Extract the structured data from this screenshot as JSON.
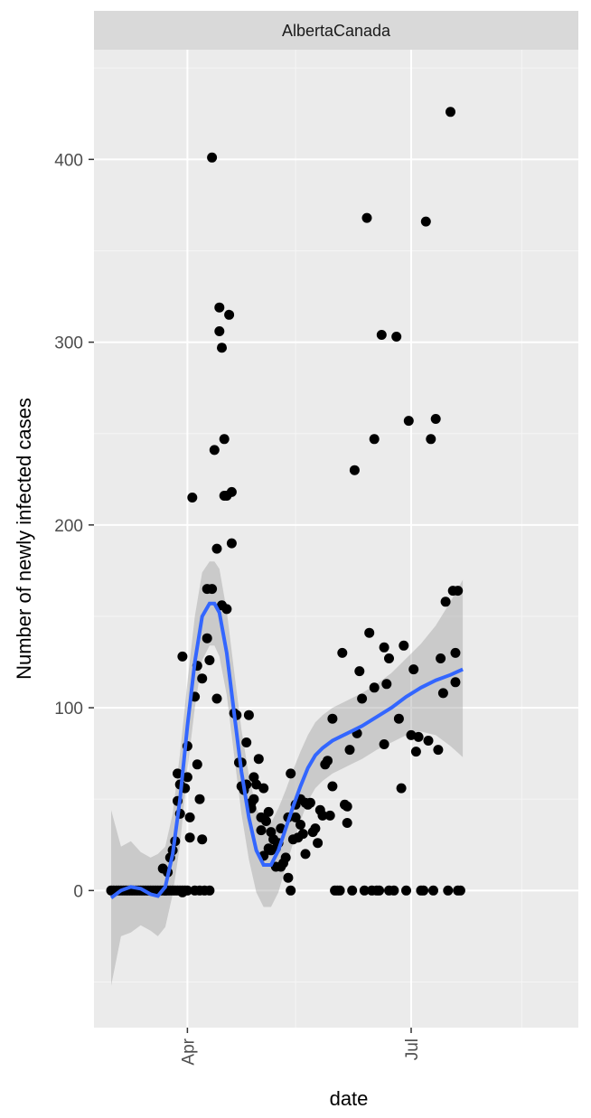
{
  "chart_data": {
    "type": "scatter",
    "facet_label": "AlbertaCanada",
    "xlabel": "date",
    "ylabel": "Number of newly infected cases",
    "x_ticks": [
      "Apr",
      "Jul"
    ],
    "y_ticks": [
      0,
      100,
      200,
      300,
      400
    ],
    "xlim": [
      "2020-02-23",
      "2020-09-07"
    ],
    "ylim": [
      -75,
      460
    ],
    "grid": true,
    "background": "#EBEBEB",
    "point_color": "#000000",
    "smooth_color": "#3366FF",
    "ribbon_color": "#BEBEBE",
    "points": [
      [
        "2020-03-01",
        0
      ],
      [
        "2020-03-02",
        0
      ],
      [
        "2020-03-03",
        0
      ],
      [
        "2020-03-04",
        0
      ],
      [
        "2020-03-05",
        0
      ],
      [
        "2020-03-06",
        0
      ],
      [
        "2020-03-07",
        0
      ],
      [
        "2020-03-08",
        0
      ],
      [
        "2020-03-09",
        0
      ],
      [
        "2020-03-10",
        0
      ],
      [
        "2020-03-11",
        0
      ],
      [
        "2020-03-12",
        0
      ],
      [
        "2020-03-13",
        0
      ],
      [
        "2020-03-14",
        0
      ],
      [
        "2020-03-15",
        0
      ],
      [
        "2020-03-16",
        0
      ],
      [
        "2020-03-17",
        0
      ],
      [
        "2020-03-18",
        0
      ],
      [
        "2020-03-19",
        0
      ],
      [
        "2020-03-20",
        0
      ],
      [
        "2020-03-21",
        0
      ],
      [
        "2020-03-22",
        0
      ],
      [
        "2020-03-23",
        0
      ],
      [
        "2020-03-24",
        0
      ],
      [
        "2020-03-25",
        0
      ],
      [
        "2020-03-26",
        0
      ],
      [
        "2020-03-27",
        0
      ],
      [
        "2020-03-28",
        0
      ],
      [
        "2020-03-29",
        0
      ],
      [
        "2020-03-30",
        0
      ],
      [
        "2020-03-31",
        0
      ],
      [
        "2020-03-22",
        12
      ],
      [
        "2020-03-23",
        0
      ],
      [
        "2020-03-24",
        10
      ],
      [
        "2020-03-25",
        18
      ],
      [
        "2020-03-26",
        22
      ],
      [
        "2020-03-27",
        27
      ],
      [
        "2020-03-28",
        49
      ],
      [
        "2020-03-28",
        64
      ],
      [
        "2020-03-29",
        42
      ],
      [
        "2020-03-29",
        58
      ],
      [
        "2020-03-30",
        -1
      ],
      [
        "2020-03-30",
        128
      ],
      [
        "2020-03-31",
        56
      ],
      [
        "2020-04-01",
        0
      ],
      [
        "2020-04-01",
        79
      ],
      [
        "2020-04-01",
        62
      ],
      [
        "2020-04-02",
        40
      ],
      [
        "2020-04-02",
        29
      ],
      [
        "2020-04-03",
        215
      ],
      [
        "2020-04-04",
        0
      ],
      [
        "2020-04-04",
        106
      ],
      [
        "2020-04-05",
        69
      ],
      [
        "2020-04-05",
        123
      ],
      [
        "2020-04-06",
        0
      ],
      [
        "2020-04-06",
        50
      ],
      [
        "2020-04-07",
        28
      ],
      [
        "2020-04-07",
        116
      ],
      [
        "2020-04-08",
        0
      ],
      [
        "2020-04-09",
        165
      ],
      [
        "2020-04-09",
        138
      ],
      [
        "2020-04-10",
        0
      ],
      [
        "2020-04-10",
        126
      ],
      [
        "2020-04-11",
        401
      ],
      [
        "2020-04-11",
        165
      ],
      [
        "2020-04-12",
        241
      ],
      [
        "2020-04-13",
        105
      ],
      [
        "2020-04-13",
        187
      ],
      [
        "2020-04-14",
        306
      ],
      [
        "2020-04-14",
        319
      ],
      [
        "2020-04-15",
        297
      ],
      [
        "2020-04-15",
        156
      ],
      [
        "2020-04-16",
        216
      ],
      [
        "2020-04-16",
        247
      ],
      [
        "2020-04-17",
        216
      ],
      [
        "2020-04-17",
        154
      ],
      [
        "2020-04-18",
        315
      ],
      [
        "2020-04-19",
        190
      ],
      [
        "2020-04-19",
        218
      ],
      [
        "2020-04-20",
        97
      ],
      [
        "2020-04-21",
        96
      ],
      [
        "2020-04-22",
        70
      ],
      [
        "2020-04-23",
        57
      ],
      [
        "2020-04-23",
        70
      ],
      [
        "2020-04-24",
        55
      ],
      [
        "2020-04-25",
        81
      ],
      [
        "2020-04-25",
        58
      ],
      [
        "2020-04-26",
        96
      ],
      [
        "2020-04-27",
        45
      ],
      [
        "2020-04-27",
        48
      ],
      [
        "2020-04-28",
        62
      ],
      [
        "2020-04-28",
        50
      ],
      [
        "2020-04-29",
        58
      ],
      [
        "2020-04-30",
        72
      ],
      [
        "2020-05-01",
        40
      ],
      [
        "2020-05-01",
        33
      ],
      [
        "2020-05-02",
        56
      ],
      [
        "2020-05-02",
        19
      ],
      [
        "2020-05-03",
        38
      ],
      [
        "2020-05-04",
        23
      ],
      [
        "2020-05-04",
        43
      ],
      [
        "2020-05-05",
        32
      ],
      [
        "2020-05-05",
        22
      ],
      [
        "2020-05-06",
        28
      ],
      [
        "2020-05-07",
        13
      ],
      [
        "2020-05-07",
        23
      ],
      [
        "2020-05-08",
        26
      ],
      [
        "2020-05-09",
        34
      ],
      [
        "2020-05-09",
        13
      ],
      [
        "2020-05-10",
        15
      ],
      [
        "2020-05-11",
        18
      ],
      [
        "2020-05-12",
        7
      ],
      [
        "2020-05-12",
        40
      ],
      [
        "2020-05-13",
        0
      ],
      [
        "2020-05-13",
        64
      ],
      [
        "2020-05-14",
        28
      ],
      [
        "2020-05-15",
        47
      ],
      [
        "2020-05-15",
        40
      ],
      [
        "2020-05-16",
        29
      ],
      [
        "2020-05-17",
        36
      ],
      [
        "2020-05-17",
        50
      ],
      [
        "2020-05-18",
        31
      ],
      [
        "2020-05-19",
        20
      ],
      [
        "2020-05-19",
        48
      ],
      [
        "2020-05-20",
        47
      ],
      [
        "2020-05-21",
        48
      ],
      [
        "2020-05-22",
        32
      ],
      [
        "2020-05-23",
        34
      ],
      [
        "2020-05-24",
        26
      ],
      [
        "2020-05-25",
        44
      ],
      [
        "2020-05-26",
        41
      ],
      [
        "2020-05-27",
        69
      ],
      [
        "2020-05-28",
        71
      ],
      [
        "2020-05-29",
        41
      ],
      [
        "2020-05-30",
        94
      ],
      [
        "2020-05-30",
        57
      ],
      [
        "2020-05-31",
        0
      ],
      [
        "2020-06-01",
        0
      ],
      [
        "2020-06-02",
        0
      ],
      [
        "2020-06-03",
        130
      ],
      [
        "2020-06-04",
        47
      ],
      [
        "2020-06-05",
        46
      ],
      [
        "2020-06-05",
        37
      ],
      [
        "2020-06-06",
        77
      ],
      [
        "2020-06-07",
        0
      ],
      [
        "2020-06-08",
        230
      ],
      [
        "2020-06-09",
        86
      ],
      [
        "2020-06-10",
        120
      ],
      [
        "2020-06-11",
        105
      ],
      [
        "2020-06-12",
        0
      ],
      [
        "2020-06-13",
        368
      ],
      [
        "2020-06-14",
        141
      ],
      [
        "2020-06-15",
        0
      ],
      [
        "2020-06-16",
        247
      ],
      [
        "2020-06-16",
        111
      ],
      [
        "2020-06-17",
        0
      ],
      [
        "2020-06-18",
        0
      ],
      [
        "2020-06-19",
        304
      ],
      [
        "2020-06-20",
        80
      ],
      [
        "2020-06-20",
        133
      ],
      [
        "2020-06-21",
        113
      ],
      [
        "2020-06-22",
        127
      ],
      [
        "2020-06-22",
        0
      ],
      [
        "2020-06-24",
        0
      ],
      [
        "2020-06-25",
        303
      ],
      [
        "2020-06-26",
        94
      ],
      [
        "2020-06-27",
        56
      ],
      [
        "2020-06-28",
        134
      ],
      [
        "2020-06-29",
        0
      ],
      [
        "2020-06-30",
        257
      ],
      [
        "2020-07-01",
        85
      ],
      [
        "2020-07-02",
        121
      ],
      [
        "2020-07-03",
        76
      ],
      [
        "2020-07-04",
        84
      ],
      [
        "2020-07-05",
        0
      ],
      [
        "2020-07-06",
        0
      ],
      [
        "2020-07-07",
        366
      ],
      [
        "2020-07-08",
        82
      ],
      [
        "2020-07-09",
        247
      ],
      [
        "2020-07-10",
        0
      ],
      [
        "2020-07-11",
        258
      ],
      [
        "2020-07-12",
        77
      ],
      [
        "2020-07-13",
        127
      ],
      [
        "2020-07-14",
        108
      ],
      [
        "2020-07-15",
        158
      ],
      [
        "2020-07-16",
        0
      ],
      [
        "2020-07-17",
        426
      ],
      [
        "2020-07-18",
        164
      ],
      [
        "2020-07-19",
        114
      ],
      [
        "2020-07-19",
        130
      ],
      [
        "2020-07-20",
        164
      ],
      [
        "2020-07-21",
        0
      ],
      [
        "2020-07-20",
        0
      ]
    ],
    "smooth": [
      [
        "2020-03-01",
        -4
      ],
      [
        "2020-03-05",
        0
      ],
      [
        "2020-03-09",
        2
      ],
      [
        "2020-03-13",
        1
      ],
      [
        "2020-03-17",
        -2
      ],
      [
        "2020-03-20",
        -3
      ],
      [
        "2020-03-23",
        2
      ],
      [
        "2020-03-26",
        20
      ],
      [
        "2020-03-29",
        50
      ],
      [
        "2020-04-01",
        90
      ],
      [
        "2020-04-04",
        125
      ],
      [
        "2020-04-07",
        150
      ],
      [
        "2020-04-10",
        157
      ],
      [
        "2020-04-12",
        157
      ],
      [
        "2020-04-14",
        152
      ],
      [
        "2020-04-17",
        130
      ],
      [
        "2020-04-20",
        97
      ],
      [
        "2020-04-23",
        65
      ],
      [
        "2020-04-26",
        40
      ],
      [
        "2020-04-29",
        22
      ],
      [
        "2020-05-02",
        14
      ],
      [
        "2020-05-05",
        14
      ],
      [
        "2020-05-08",
        22
      ],
      [
        "2020-05-11",
        34
      ],
      [
        "2020-05-14",
        46
      ],
      [
        "2020-05-17",
        57
      ],
      [
        "2020-05-20",
        67
      ],
      [
        "2020-05-23",
        74
      ],
      [
        "2020-05-26",
        78
      ],
      [
        "2020-05-30",
        82
      ],
      [
        "2020-06-05",
        86
      ],
      [
        "2020-06-11",
        90
      ],
      [
        "2020-06-17",
        95
      ],
      [
        "2020-06-23",
        100
      ],
      [
        "2020-06-29",
        106
      ],
      [
        "2020-07-05",
        111
      ],
      [
        "2020-07-11",
        115
      ],
      [
        "2020-07-17",
        118
      ],
      [
        "2020-07-22",
        121
      ]
    ],
    "ribbon_upper": [
      [
        "2020-03-01",
        44
      ],
      [
        "2020-03-05",
        24
      ],
      [
        "2020-03-09",
        27
      ],
      [
        "2020-03-13",
        21
      ],
      [
        "2020-03-17",
        18
      ],
      [
        "2020-03-20",
        20
      ],
      [
        "2020-03-23",
        24
      ],
      [
        "2020-03-26",
        42
      ],
      [
        "2020-03-29",
        75
      ],
      [
        "2020-04-01",
        114
      ],
      [
        "2020-04-04",
        150
      ],
      [
        "2020-04-07",
        174
      ],
      [
        "2020-04-10",
        180
      ],
      [
        "2020-04-12",
        180
      ],
      [
        "2020-04-14",
        176
      ],
      [
        "2020-04-17",
        153
      ],
      [
        "2020-04-20",
        120
      ],
      [
        "2020-04-23",
        88
      ],
      [
        "2020-04-26",
        63
      ],
      [
        "2020-04-29",
        45
      ],
      [
        "2020-05-02",
        37
      ],
      [
        "2020-05-05",
        37
      ],
      [
        "2020-05-08",
        45
      ],
      [
        "2020-05-11",
        55
      ],
      [
        "2020-05-14",
        66
      ],
      [
        "2020-05-17",
        76
      ],
      [
        "2020-05-20",
        85
      ],
      [
        "2020-05-23",
        92
      ],
      [
        "2020-05-26",
        96
      ],
      [
        "2020-05-30",
        100
      ],
      [
        "2020-06-05",
        104
      ],
      [
        "2020-06-11",
        108
      ],
      [
        "2020-06-17",
        113
      ],
      [
        "2020-06-23",
        119
      ],
      [
        "2020-06-29",
        127
      ],
      [
        "2020-07-05",
        135
      ],
      [
        "2020-07-11",
        145
      ],
      [
        "2020-07-17",
        158
      ],
      [
        "2020-07-22",
        170
      ]
    ],
    "ribbon_lower": [
      [
        "2020-03-01",
        -52
      ],
      [
        "2020-03-05",
        -25
      ],
      [
        "2020-03-09",
        -23
      ],
      [
        "2020-03-13",
        -19
      ],
      [
        "2020-03-17",
        -22
      ],
      [
        "2020-03-20",
        -25
      ],
      [
        "2020-03-23",
        -20
      ],
      [
        "2020-03-26",
        -2
      ],
      [
        "2020-03-29",
        25
      ],
      [
        "2020-04-01",
        66
      ],
      [
        "2020-04-04",
        100
      ],
      [
        "2020-04-07",
        126
      ],
      [
        "2020-04-10",
        134
      ],
      [
        "2020-04-12",
        134
      ],
      [
        "2020-04-14",
        128
      ],
      [
        "2020-04-17",
        107
      ],
      [
        "2020-04-20",
        74
      ],
      [
        "2020-04-23",
        42
      ],
      [
        "2020-04-26",
        17
      ],
      [
        "2020-04-29",
        -1
      ],
      [
        "2020-05-02",
        -9
      ],
      [
        "2020-05-05",
        -9
      ],
      [
        "2020-05-08",
        -1
      ],
      [
        "2020-05-11",
        13
      ],
      [
        "2020-05-14",
        26
      ],
      [
        "2020-05-17",
        38
      ],
      [
        "2020-05-20",
        49
      ],
      [
        "2020-05-23",
        56
      ],
      [
        "2020-05-26",
        60
      ],
      [
        "2020-05-30",
        64
      ],
      [
        "2020-06-05",
        68
      ],
      [
        "2020-06-11",
        72
      ],
      [
        "2020-06-17",
        77
      ],
      [
        "2020-06-23",
        81
      ],
      [
        "2020-06-29",
        85
      ],
      [
        "2020-07-05",
        87
      ],
      [
        "2020-07-11",
        85
      ],
      [
        "2020-07-17",
        79
      ],
      [
        "2020-07-22",
        73
      ]
    ]
  }
}
